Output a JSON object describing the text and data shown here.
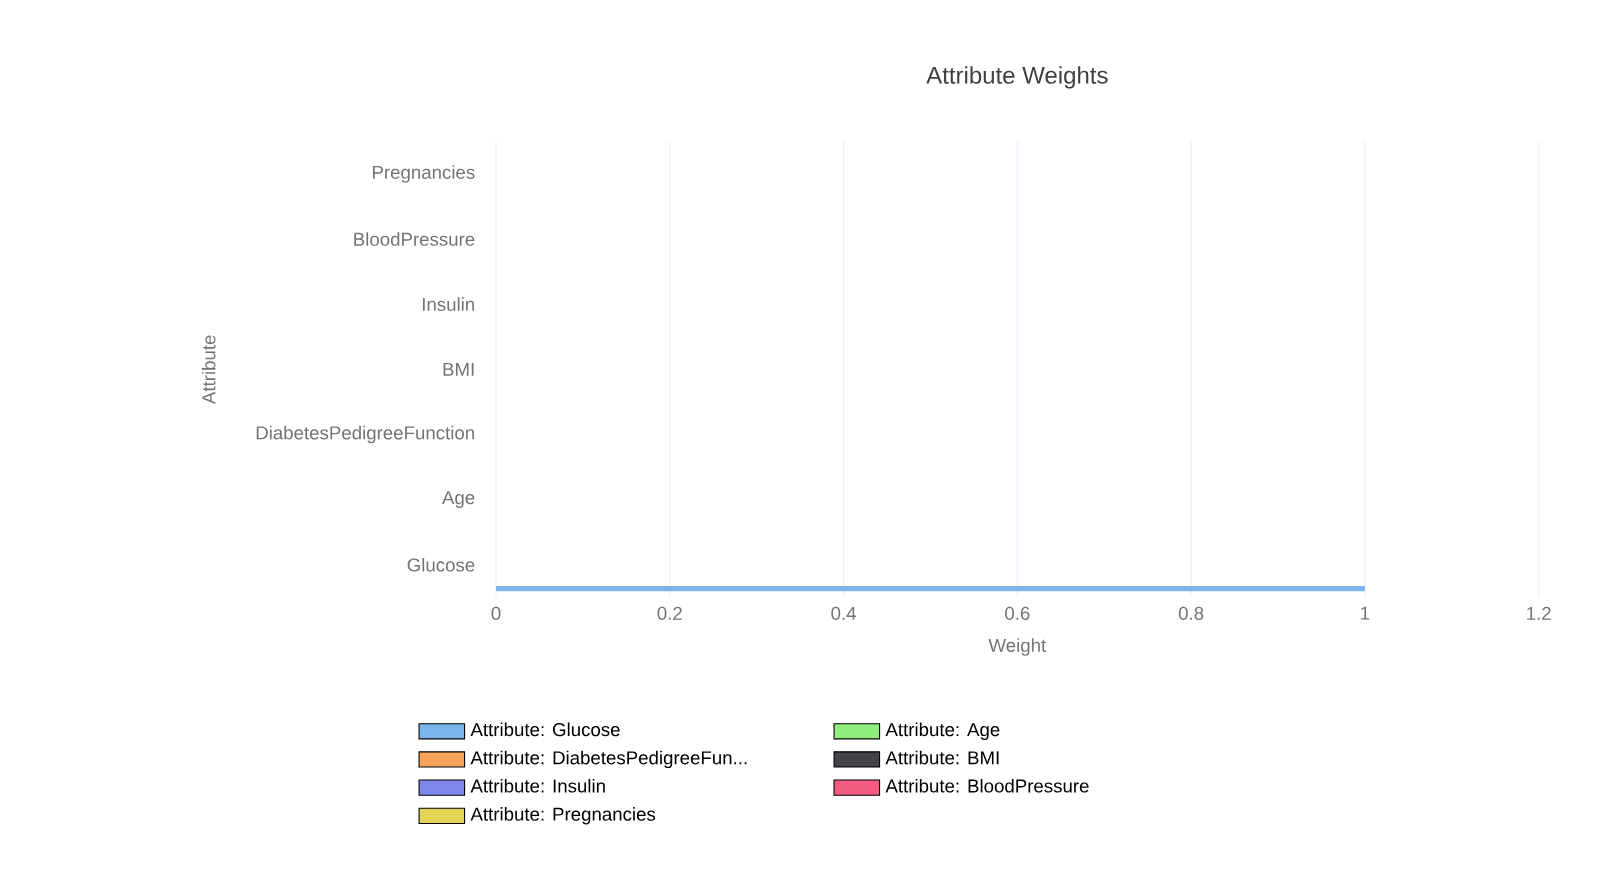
{
  "chart_data": {
    "type": "bar",
    "orientation": "horizontal",
    "title": "Attribute Weights",
    "xlabel": "Weight",
    "ylabel": "Attribute",
    "categories": [
      "Pregnancies",
      "BloodPressure",
      "Insulin",
      "BMI",
      "DiabetesPedigreeFunction",
      "Age",
      "Glucose"
    ],
    "series": [
      {
        "name": "Attribute: Glucose",
        "color": "#7cb5ec",
        "values": [
          null,
          null,
          null,
          null,
          null,
          null,
          1
        ]
      },
      {
        "name": "Attribute: Age",
        "color": "#90ed7d",
        "values": [
          null,
          null,
          null,
          null,
          null,
          0,
          null
        ]
      },
      {
        "name": "Attribute: DiabetesPedigreeFun...",
        "color": "#f7a35c",
        "values": [
          null,
          null,
          null,
          null,
          0,
          null,
          null
        ]
      },
      {
        "name": "Attribute: BMI",
        "color": "#434348",
        "values": [
          null,
          null,
          null,
          0,
          null,
          null,
          null
        ]
      },
      {
        "name": "Attribute: Insulin",
        "color": "#8085e9",
        "values": [
          null,
          null,
          0,
          null,
          null,
          null,
          null
        ]
      },
      {
        "name": "Attribute: BloodPressure",
        "color": "#f15c80",
        "values": [
          null,
          0,
          null,
          null,
          null,
          null,
          null
        ]
      },
      {
        "name": "Attribute: Pregnancies",
        "color": "#e4d354",
        "values": [
          0,
          null,
          null,
          null,
          null,
          null,
          null
        ]
      }
    ],
    "xlim": [
      0,
      1.2
    ],
    "xticks": [
      0,
      0.2,
      0.4,
      0.6,
      0.8,
      1,
      1.2
    ],
    "grid": "x",
    "legend": "bottom"
  }
}
